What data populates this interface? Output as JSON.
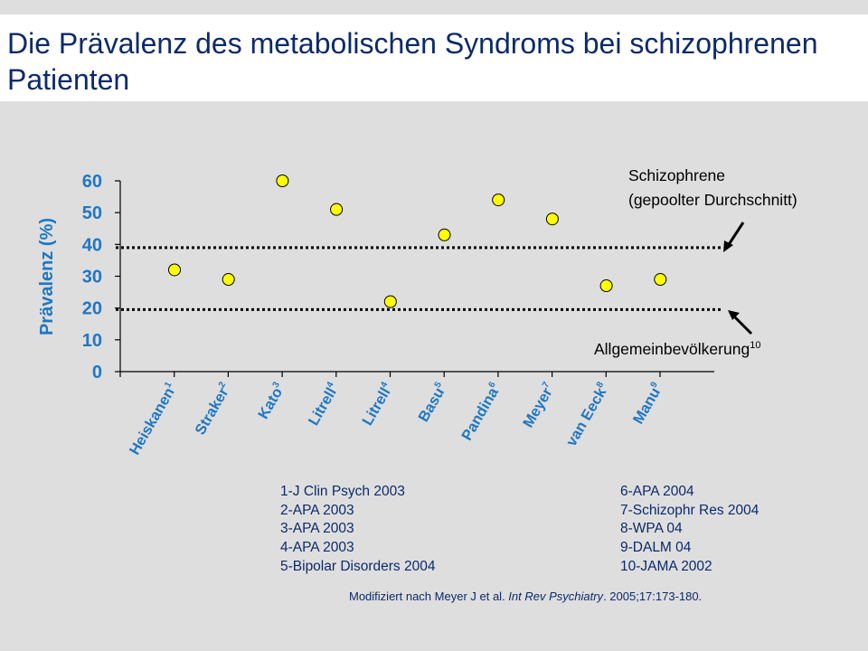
{
  "title": "Die Prävalenz des metabolischen Syndroms bei schizophrenen Patienten",
  "colors": {
    "accent": "#1f77c4",
    "marker_fill": "#ffff00",
    "text": "#0c2a6b",
    "background": "#dedede"
  },
  "chart_data": {
    "type": "scatter",
    "ylabel": "Prävalenz (%)",
    "ylim": [
      0,
      60
    ],
    "yticks": [
      "0",
      "10",
      "20",
      "30",
      "40",
      "50",
      "60"
    ],
    "grid": false,
    "categories": [
      {
        "name": "Heiskanen",
        "sup": "1"
      },
      {
        "name": "Straker",
        "sup": "2"
      },
      {
        "name": "Kato",
        "sup": "3"
      },
      {
        "name": "Litrell",
        "sup": "4"
      },
      {
        "name": "Litrell",
        "sup": "4"
      },
      {
        "name": "Basu",
        "sup": "5"
      },
      {
        "name": "Pandina",
        "sup": "6"
      },
      {
        "name": "Meyer",
        "sup": "7"
      },
      {
        "name": "van Eeck",
        "sup": "8"
      },
      {
        "name": "Manu",
        "sup": "9"
      }
    ],
    "values": [
      32,
      29,
      60,
      51,
      22,
      43,
      54,
      48,
      27,
      29
    ],
    "reference_lines": [
      {
        "value": 39,
        "label_lines": [
          "Schizophrene",
          "(gepoolter Durchschnitt)"
        ],
        "sup": ""
      },
      {
        "value": 19.5,
        "label_lines": [
          "Allgemeinbevölkerung"
        ],
        "sup": "10"
      }
    ]
  },
  "references": {
    "left": [
      "1-J Clin Psych 2003",
      "2-APA 2003",
      "3-APA 2003",
      "4-APA 2003",
      "5-Bipolar Disorders 2004"
    ],
    "right": [
      "6-APA 2004",
      "7-Schizophr Res 2004",
      "8-WPA 04",
      "9-DALM 04",
      "10-JAMA 2002"
    ]
  },
  "source_note": {
    "prefix": "Modifiziert nach Meyer J et al. ",
    "journal": "Int Rev Psychiatry",
    "suffix": ". 2005;17:173-180."
  }
}
